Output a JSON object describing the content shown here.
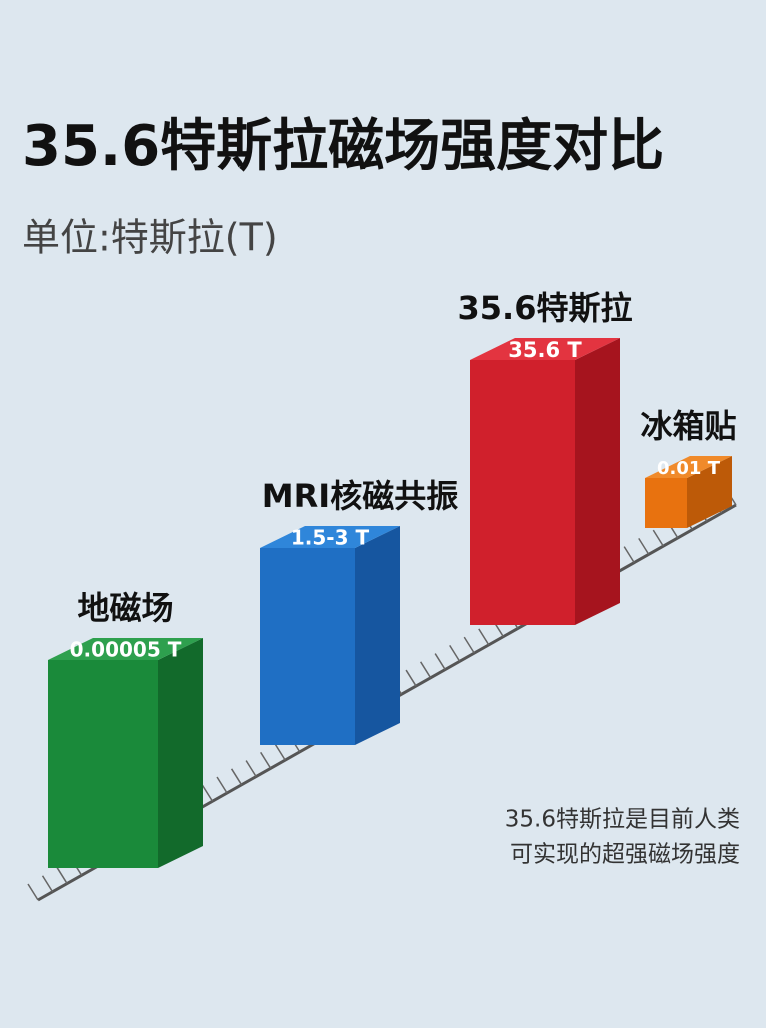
{
  "header": {
    "title": "35.6特斯拉磁场强度对比",
    "subtitle": "单位:特斯拉(T)"
  },
  "items": [
    {
      "name": "地磁场",
      "value_label": "0.00005 T"
    },
    {
      "name": "MRI核磁共振",
      "value_label": "1.5-3 T"
    },
    {
      "name": "35.6特斯拉",
      "value_label": "35.6 T"
    },
    {
      "name": "冰箱贴",
      "value_label": "0.01 T"
    }
  ],
  "note": [
    "35.6特斯拉是目前人类",
    "可实现的超强磁场强度"
  ]
}
